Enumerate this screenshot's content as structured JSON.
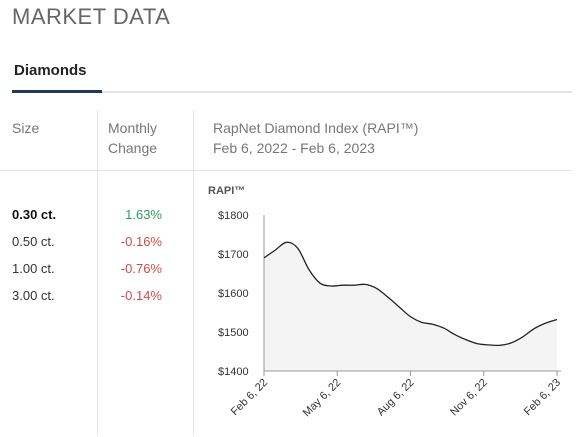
{
  "page_title": "MARKET DATA",
  "tabs": [
    {
      "label": "Diamonds",
      "active": true
    }
  ],
  "table": {
    "headers": {
      "size": "Size",
      "change_line1": "Monthly",
      "change_line2": "Change",
      "index_line1": "RapNet Diamond Index (RAPI™)",
      "index_line2": "Feb 6, 2022 - Feb 6, 2023"
    },
    "rows": [
      {
        "size": "0.30 ct.",
        "change": "1.63%",
        "direction": "up",
        "selected": true
      },
      {
        "size": "0.50 ct.",
        "change": "-0.16%",
        "direction": "down",
        "selected": false
      },
      {
        "size": "1.00 ct.",
        "change": "-0.76%",
        "direction": "down",
        "selected": false
      },
      {
        "size": "3.00 ct.",
        "change": "-0.14%",
        "direction": "down",
        "selected": false
      }
    ]
  },
  "colors": {
    "accent": "#1f3a57",
    "positive": "#2a9d5c",
    "negative": "#d14b4b",
    "area_fill": "#f4f4f4",
    "line": "#222222"
  },
  "chart_data": {
    "type": "area",
    "title": "RAPI™",
    "ylim": [
      1400,
      1800
    ],
    "y_ticks": [
      "$1800",
      "$1700",
      "$1600",
      "$1500",
      "$1400"
    ],
    "x_tick_labels": [
      "Feb 6, 22",
      "May 6, 22",
      "Aug 6, 22",
      "Nov 6, 22",
      "Feb 6, 23"
    ],
    "grid": false,
    "series": [
      {
        "x": [
          "2022-02-06",
          "2022-02-20",
          "2022-03-06",
          "2022-03-20",
          "2022-04-03",
          "2022-04-17",
          "2022-05-01",
          "2022-05-15",
          "2022-05-29",
          "2022-06-12",
          "2022-06-26",
          "2022-07-10",
          "2022-07-24",
          "2022-08-07",
          "2022-08-21",
          "2022-09-04",
          "2022-09-18",
          "2022-10-02",
          "2022-10-16",
          "2022-10-30",
          "2022-11-13",
          "2022-11-27",
          "2022-12-11",
          "2022-12-25",
          "2023-01-08",
          "2023-01-22",
          "2023-02-06"
        ],
        "values": [
          1690,
          1710,
          1730,
          1715,
          1660,
          1625,
          1618,
          1620,
          1620,
          1622,
          1612,
          1590,
          1565,
          1540,
          1525,
          1520,
          1510,
          1493,
          1480,
          1470,
          1467,
          1466,
          1472,
          1487,
          1508,
          1522,
          1532
        ]
      }
    ]
  }
}
